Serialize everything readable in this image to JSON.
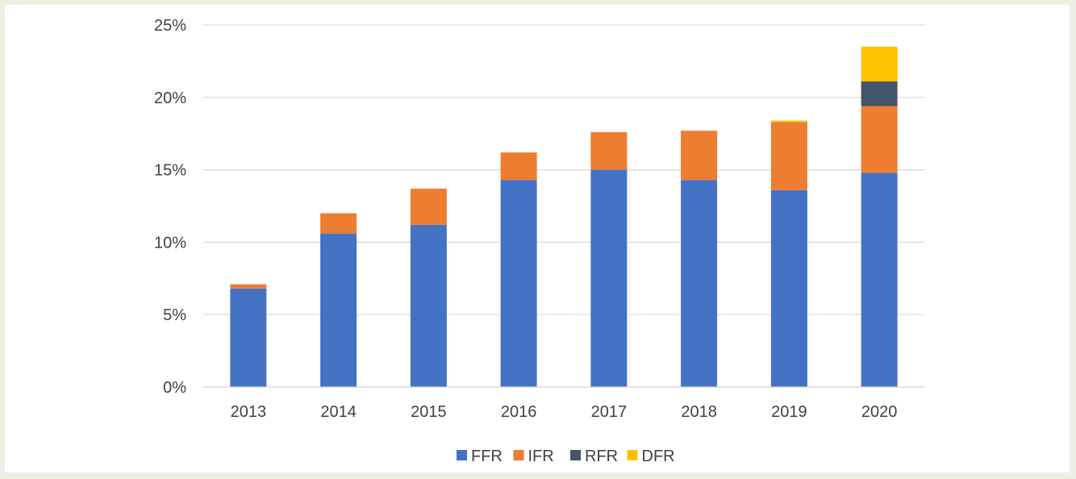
{
  "chart_data": {
    "type": "bar",
    "stacked": true,
    "title": "",
    "xlabel": "",
    "ylabel": "",
    "categories": [
      "2013",
      "2014",
      "2015",
      "2016",
      "2017",
      "2018",
      "2019",
      "2020"
    ],
    "ylim": [
      0,
      25
    ],
    "yticks": [
      0,
      5,
      10,
      15,
      20,
      25
    ],
    "ytick_labels": [
      "0%",
      "5%",
      "10%",
      "15%",
      "20%",
      "25%"
    ],
    "grid": true,
    "legend_position": "bottom",
    "series": [
      {
        "name": "FFR",
        "color": "#4472c4",
        "values": [
          6.8,
          10.6,
          11.2,
          14.3,
          15.0,
          14.3,
          13.6,
          14.8
        ]
      },
      {
        "name": "IFR",
        "color": "#ed7d31",
        "values": [
          0.3,
          1.4,
          2.5,
          1.9,
          2.6,
          3.4,
          4.7,
          4.6
        ]
      },
      {
        "name": "RFR",
        "color": "#44546a",
        "values": [
          0,
          0,
          0,
          0,
          0,
          0,
          0,
          1.7
        ]
      },
      {
        "name": "DFR",
        "color": "#ffc000",
        "values": [
          0,
          0,
          0,
          0,
          0,
          0,
          0.1,
          2.4
        ]
      }
    ]
  }
}
